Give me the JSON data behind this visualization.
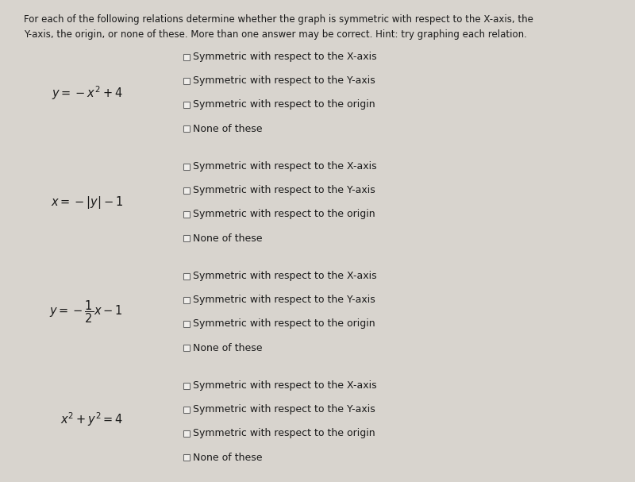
{
  "bg_color": "#d8d4ce",
  "header_text": "For each of the following relations determine whether the graph is symmetric with respect to the X-axis, the\nY-axis, the origin, or none of these. More than one answer may be correct. Hint: try graphing each relation.",
  "questions": [
    {
      "equation": "$y = -x^2 + 4$",
      "options": [
        "Symmetric with respect to the X-axis",
        "Symmetric with respect to the Y-axis",
        "Symmetric with respect to the origin",
        "None of these"
      ]
    },
    {
      "equation": "$x = -|y| - 1$",
      "options": [
        "Symmetric with respect to the X-axis",
        "Symmetric with respect to the Y-axis",
        "Symmetric with respect to the origin",
        "None of these"
      ]
    },
    {
      "equation": "$y = -\\dfrac{1}{2}x - 1$",
      "options": [
        "Symmetric with respect to the X-axis",
        "Symmetric with respect to the Y-axis",
        "Symmetric with respect to the origin",
        "None of these"
      ]
    },
    {
      "equation": "$x^2 + y^2 = 4$",
      "options": [
        "Symmetric with respect to the X-axis",
        "Symmetric with respect to the Y-axis",
        "Symmetric with respect to the origin",
        "None of these"
      ]
    }
  ],
  "header_fontsize": 8.5,
  "eq_fontsize": 10.5,
  "opt_fontsize": 9.0,
  "text_color": "#1a1a1a",
  "checkbox_edge_color": "#666666",
  "checkbox_face_color": "#f0eeeb"
}
